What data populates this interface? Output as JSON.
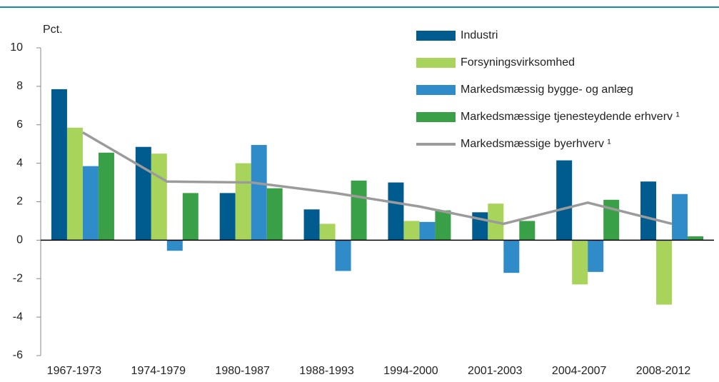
{
  "chart_data": {
    "type": "bar",
    "ylabel": "Pct.",
    "categories": [
      "1967-1973",
      "1974-1979",
      "1980-1987",
      "1988-1993",
      "1994-2000",
      "2001-2003",
      "2004-2007",
      "2008-2012"
    ],
    "series": [
      {
        "name": "Industri",
        "color": "#005b8e",
        "type": "bar",
        "values": [
          7.85,
          4.85,
          2.45,
          1.6,
          3.0,
          1.45,
          4.15,
          3.05
        ]
      },
      {
        "name": "Forsyningsvirksomhed",
        "color": "#a8d45c",
        "type": "bar",
        "values": [
          5.85,
          4.5,
          4.0,
          0.85,
          1.0,
          1.9,
          -2.3,
          -3.35
        ]
      },
      {
        "name": "Markedsmæssig bygge- og anlæg",
        "color": "#2f8cc9",
        "type": "bar",
        "values": [
          3.85,
          -0.55,
          4.95,
          -1.6,
          0.95,
          -1.7,
          -1.65,
          2.4
        ]
      },
      {
        "name": "Markedsmæssige tjenesteydende erhverv ¹",
        "color": "#3aa047",
        "type": "bar",
        "values": [
          4.55,
          2.45,
          2.7,
          3.1,
          1.55,
          1.0,
          2.1,
          0.2
        ]
      },
      {
        "name": "Markedsmæssige byerhverv ¹",
        "color": "#9b9b9b",
        "type": "line",
        "values": [
          5.6,
          3.05,
          3.0,
          2.45,
          1.75,
          0.85,
          1.95,
          0.85
        ]
      }
    ],
    "ylim": [
      -6,
      10
    ],
    "yticks": [
      10,
      8,
      6,
      4,
      2,
      0,
      -2,
      -4,
      -6
    ],
    "grid": false,
    "legend": "upper right"
  }
}
